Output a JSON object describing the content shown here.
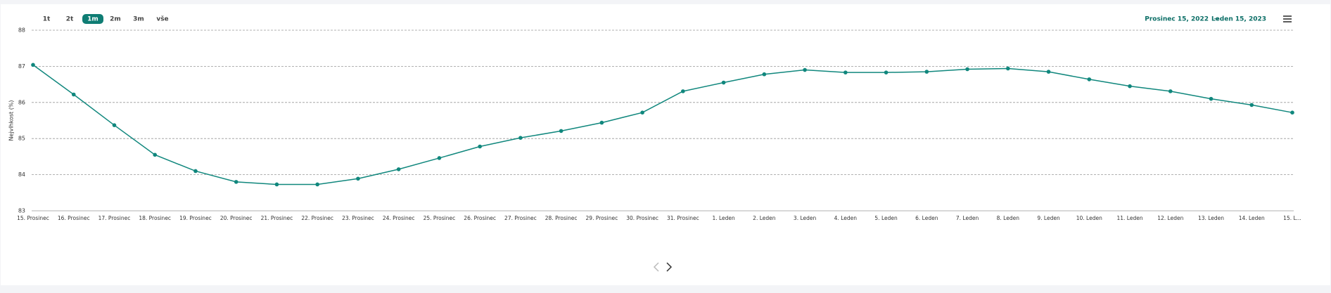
{
  "toolbar": {
    "range_buttons": [
      "1t",
      "2t",
      "1m",
      "2m",
      "3m",
      "vše"
    ],
    "active_button": 2,
    "date_from": "Prosinec 15, 2022",
    "date_arrow": "→",
    "date_to": "Leden 15, 2023"
  },
  "chart_data": {
    "type": "line",
    "y_label": "Nejvlhkost (%)",
    "categories": [
      "15. Prosinec",
      "16. Prosinec",
      "17. Prosinec",
      "18. Prosinec",
      "19. Prosinec",
      "20. Prosinec",
      "21. Prosinec",
      "22. Prosinec",
      "23. Prosinec",
      "24. Prosinec",
      "25. Prosinec",
      "26. Prosinec",
      "27. Prosinec",
      "28. Prosinec",
      "29. Prosinec",
      "30. Prosinec",
      "31. Prosinec",
      "1. Leden",
      "2. Leden",
      "3. Leden",
      "4. Leden",
      "5. Leden",
      "6. Leden",
      "7. Leden",
      "8. Leden",
      "9. Leden",
      "10. Leden",
      "11. Leden",
      "12. Leden",
      "13. Leden",
      "14. Leden",
      "15. L..."
    ],
    "series": [
      {
        "color": "#10877d",
        "values": [
          87.04,
          86.22,
          85.37,
          84.55,
          84.1,
          83.8,
          83.73,
          83.73,
          83.89,
          84.15,
          84.46,
          84.78,
          85.02,
          85.21,
          85.44,
          85.72,
          86.31,
          86.55,
          86.78,
          86.9,
          86.83,
          86.83,
          86.85,
          86.92,
          86.94,
          86.85,
          86.64,
          86.45,
          86.31,
          86.1,
          85.93,
          85.72
        ]
      }
    ],
    "ylim": [
      83,
      88
    ],
    "yticks": [
      83,
      84,
      85,
      86,
      87,
      88
    ],
    "grid": true
  }
}
